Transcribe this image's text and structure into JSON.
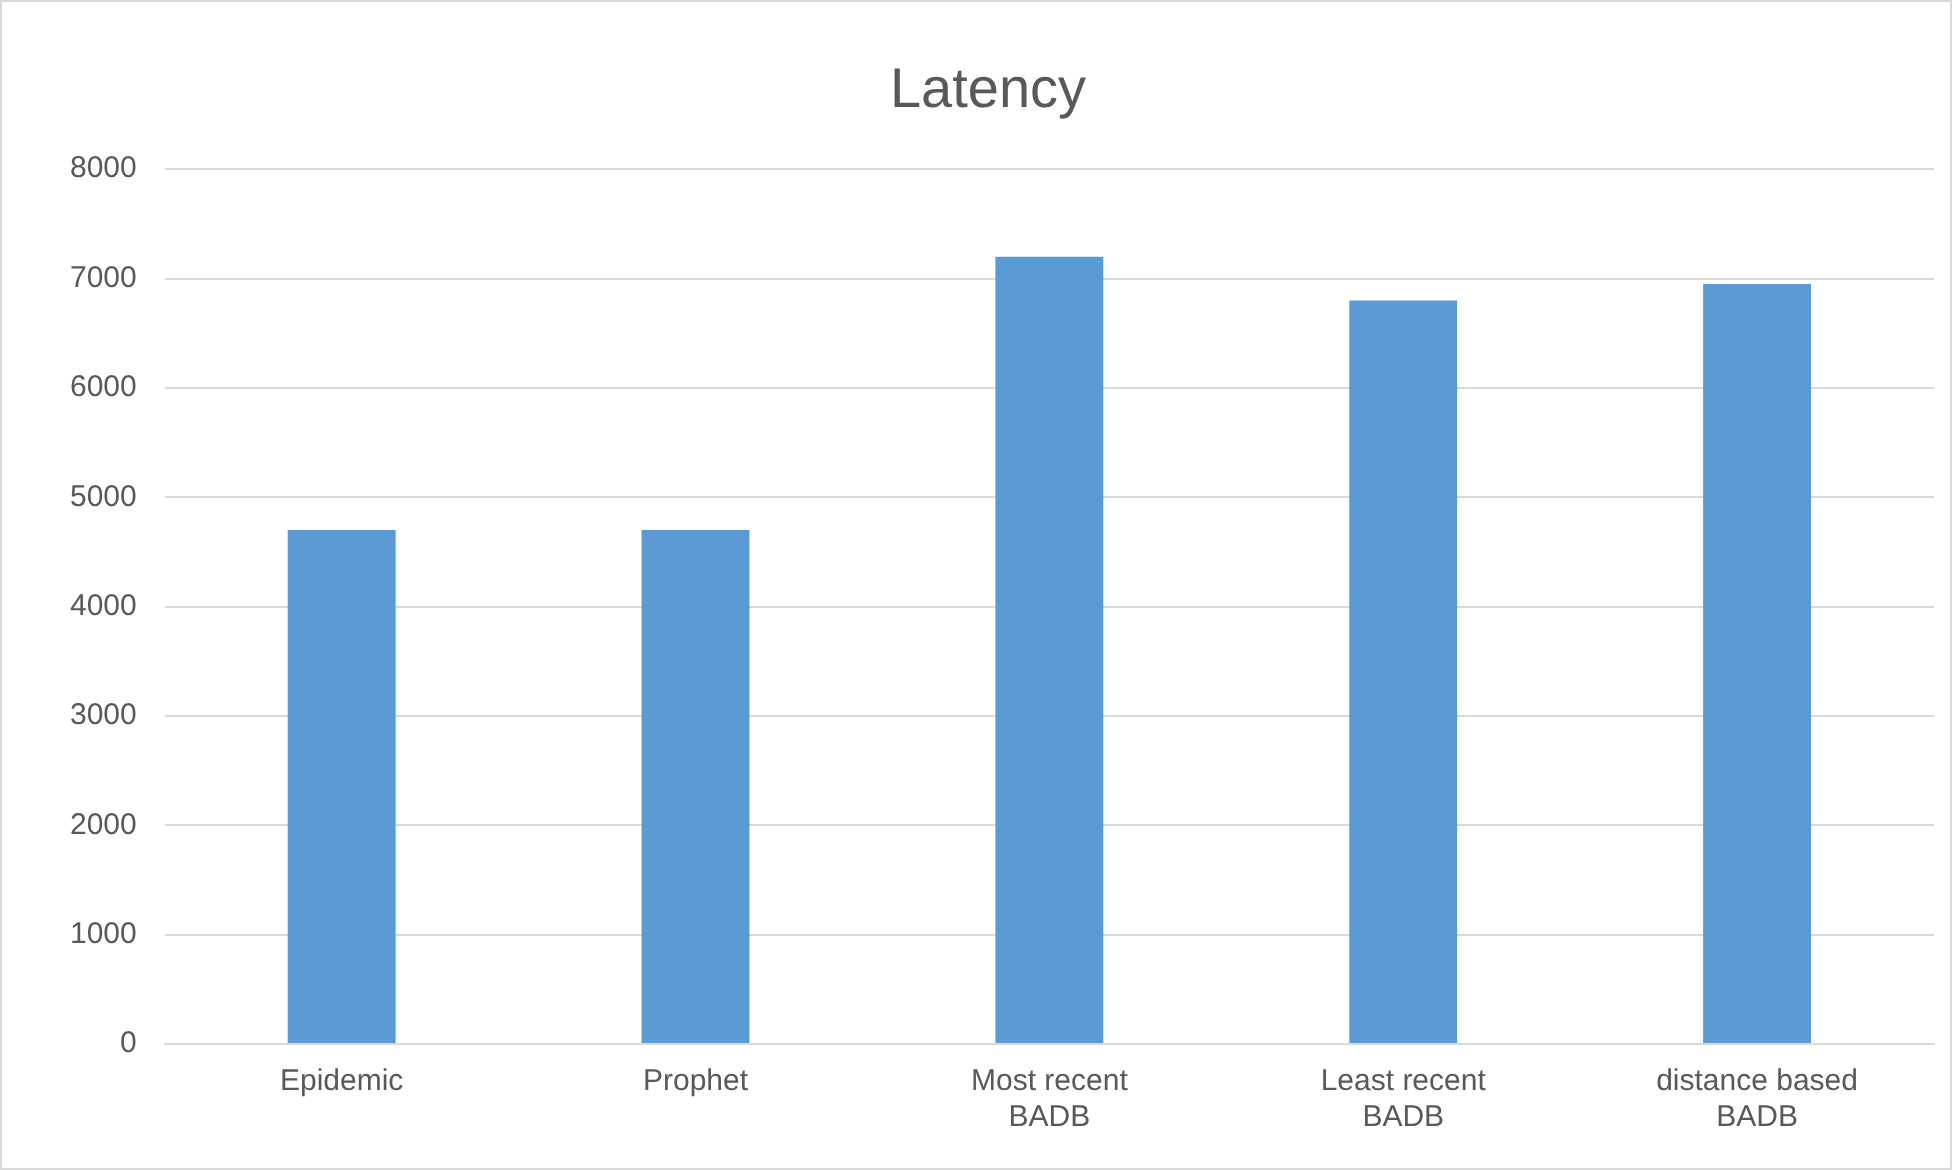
{
  "chart_data": {
    "type": "bar",
    "title": "Latency",
    "categories": [
      "Epidemic",
      "Prophet",
      "Most recent BADB",
      "Least recent BADB",
      "distance based BADB"
    ],
    "values": [
      4700,
      4700,
      7200,
      6800,
      6950
    ],
    "color": "#5b9bd5",
    "ylim": [
      0,
      8000
    ],
    "yticks": [
      0,
      1000,
      2000,
      3000,
      4000,
      5000,
      6000,
      7000,
      8000
    ],
    "grid": "y",
    "legend": false
  }
}
